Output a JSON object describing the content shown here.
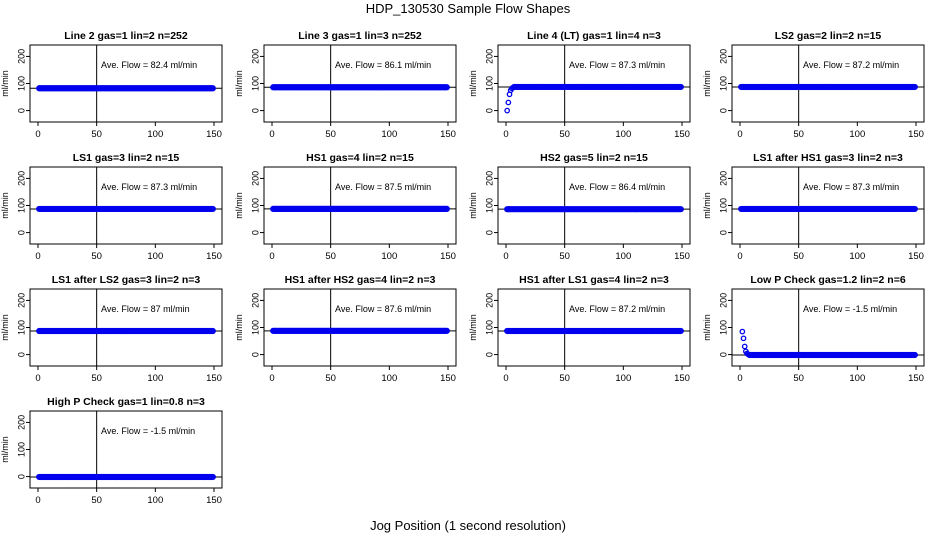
{
  "title": "HDP_130530  Sample Flow Shapes",
  "xlabel": "Jog Position (1 second resolution)",
  "colors": {
    "points": "#0000ee",
    "axes": "#000000"
  },
  "chart_data": [
    {
      "type": "scatter",
      "title": "Line 2 gas=1 lin=2 n=252",
      "ylabel": "ml/min",
      "annotation": "Ave. Flow =  82.4  ml/min",
      "xlim": [
        0,
        150
      ],
      "ylim": [
        -20,
        220
      ],
      "xticks": [
        "0",
        "50",
        "100",
        "150"
      ],
      "yticks": [
        "0",
        "100",
        "200"
      ],
      "vline": 50,
      "hline": 82.4,
      "shape": "flat",
      "level": 82.4
    },
    {
      "type": "scatter",
      "title": "Line 3 gas=1 lin=3 n=252",
      "ylabel": "ml/min",
      "annotation": "Ave. Flow =  86.1  ml/min",
      "xlim": [
        0,
        150
      ],
      "ylim": [
        -20,
        220
      ],
      "xticks": [
        "0",
        "50",
        "100",
        "150"
      ],
      "yticks": [
        "0",
        "100",
        "200"
      ],
      "vline": 50,
      "hline": 86.1,
      "shape": "flat",
      "level": 86.1
    },
    {
      "type": "scatter",
      "title": "Line 4 (LT) gas=1 lin=4 n=3",
      "ylabel": "ml/min",
      "annotation": "Ave. Flow =  87.3  ml/min",
      "xlim": [
        0,
        150
      ],
      "ylim": [
        -20,
        220
      ],
      "xticks": [
        "0",
        "50",
        "100",
        "150"
      ],
      "yticks": [
        "0",
        "100",
        "200"
      ],
      "vline": 50,
      "hline": 87.3,
      "shape": "rise",
      "level": 87.3,
      "start_points": [
        [
          1,
          0
        ],
        [
          2,
          30
        ],
        [
          3,
          60
        ],
        [
          4,
          75
        ],
        [
          5,
          82
        ],
        [
          6,
          85
        ]
      ]
    },
    {
      "type": "scatter",
      "title": "LS2 gas=2 lin=2 n=15",
      "ylabel": "ml/min",
      "annotation": "Ave. Flow =  87.2  ml/min",
      "xlim": [
        0,
        150
      ],
      "ylim": [
        -20,
        220
      ],
      "xticks": [
        "0",
        "50",
        "100",
        "150"
      ],
      "yticks": [
        "0",
        "100",
        "200"
      ],
      "vline": 50,
      "hline": 87.2,
      "shape": "flat",
      "level": 87.2
    },
    {
      "type": "scatter",
      "title": "LS1 gas=3 lin=2 n=15",
      "ylabel": "ml/min",
      "annotation": "Ave. Flow =  87.3  ml/min",
      "xlim": [
        0,
        150
      ],
      "ylim": [
        -20,
        220
      ],
      "xticks": [
        "0",
        "50",
        "100",
        "150"
      ],
      "yticks": [
        "0",
        "100",
        "200"
      ],
      "vline": 50,
      "hline": 87.3,
      "shape": "flat",
      "level": 87.3
    },
    {
      "type": "scatter",
      "title": "HS1 gas=4 lin=2 n=15",
      "ylabel": "ml/min",
      "annotation": "Ave. Flow =  87.5  ml/min",
      "xlim": [
        0,
        150
      ],
      "ylim": [
        -20,
        220
      ],
      "xticks": [
        "0",
        "50",
        "100",
        "150"
      ],
      "yticks": [
        "0",
        "100",
        "200"
      ],
      "vline": 50,
      "hline": 87.5,
      "shape": "flat",
      "level": 87.5
    },
    {
      "type": "scatter",
      "title": "HS2 gas=5 lin=2 n=15",
      "ylabel": "ml/min",
      "annotation": "Ave. Flow =  86.4  ml/min",
      "xlim": [
        0,
        150
      ],
      "ylim": [
        -20,
        220
      ],
      "xticks": [
        "0",
        "50",
        "100",
        "150"
      ],
      "yticks": [
        "0",
        "100",
        "200"
      ],
      "vline": 50,
      "hline": 86.4,
      "shape": "flat",
      "level": 86.4
    },
    {
      "type": "scatter",
      "title": "LS1 after HS1 gas=3 lin=2 n=3",
      "ylabel": "ml/min",
      "annotation": "Ave. Flow =  87.3  ml/min",
      "xlim": [
        0,
        150
      ],
      "ylim": [
        -20,
        220
      ],
      "xticks": [
        "0",
        "50",
        "100",
        "150"
      ],
      "yticks": [
        "0",
        "100",
        "200"
      ],
      "vline": 50,
      "hline": 87.3,
      "shape": "flat",
      "level": 87.3
    },
    {
      "type": "scatter",
      "title": "LS1 after LS2 gas=3 lin=2 n=3",
      "ylabel": "ml/min",
      "annotation": "Ave. Flow =  87  ml/min",
      "xlim": [
        0,
        150
      ],
      "ylim": [
        -20,
        220
      ],
      "xticks": [
        "0",
        "50",
        "100",
        "150"
      ],
      "yticks": [
        "0",
        "100",
        "200"
      ],
      "vline": 50,
      "hline": 87,
      "shape": "flat",
      "level": 87
    },
    {
      "type": "scatter",
      "title": "HS1 after HS2 gas=4 lin=2 n=3",
      "ylabel": "ml/min",
      "annotation": "Ave. Flow =  87.6  ml/min",
      "xlim": [
        0,
        150
      ],
      "ylim": [
        -20,
        220
      ],
      "xticks": [
        "0",
        "50",
        "100",
        "150"
      ],
      "yticks": [
        "0",
        "100",
        "200"
      ],
      "vline": 50,
      "hline": 87.6,
      "shape": "flat",
      "level": 87.6
    },
    {
      "type": "scatter",
      "title": "HS1 after LS1 gas=4 lin=2 n=3",
      "ylabel": "ml/min",
      "annotation": "Ave. Flow =  87.2  ml/min",
      "xlim": [
        0,
        150
      ],
      "ylim": [
        -20,
        220
      ],
      "xticks": [
        "0",
        "50",
        "100",
        "150"
      ],
      "yticks": [
        "0",
        "100",
        "200"
      ],
      "vline": 50,
      "hline": 87.2,
      "shape": "flat",
      "level": 87.2
    },
    {
      "type": "scatter",
      "title": "Low P Check gas=1.2 lin=2 n=6",
      "ylabel": "ml/min",
      "annotation": "Ave. Flow =  -1.5  ml/min",
      "xlim": [
        0,
        150
      ],
      "ylim": [
        -20,
        220
      ],
      "xticks": [
        "0",
        "50",
        "100",
        "150"
      ],
      "yticks": [
        "0",
        "100",
        "200"
      ],
      "vline": 50,
      "hline": -1.5,
      "shape": "decay",
      "level": -1.5,
      "start_points": [
        [
          2,
          85
        ],
        [
          3,
          60
        ],
        [
          4,
          30
        ],
        [
          5,
          12
        ],
        [
          6,
          4
        ],
        [
          7,
          1
        ]
      ]
    },
    {
      "type": "scatter",
      "title": "High P Check gas=1 lin=0.8 n=3",
      "ylabel": "ml/min",
      "annotation": "Ave. Flow =  -1.5  ml/min",
      "xlim": [
        0,
        150
      ],
      "ylim": [
        -20,
        220
      ],
      "xticks": [
        "0",
        "50",
        "100",
        "150"
      ],
      "yticks": [
        "0",
        "100",
        "200"
      ],
      "vline": 50,
      "hline": -1.5,
      "shape": "flat",
      "level": -1.5
    }
  ]
}
